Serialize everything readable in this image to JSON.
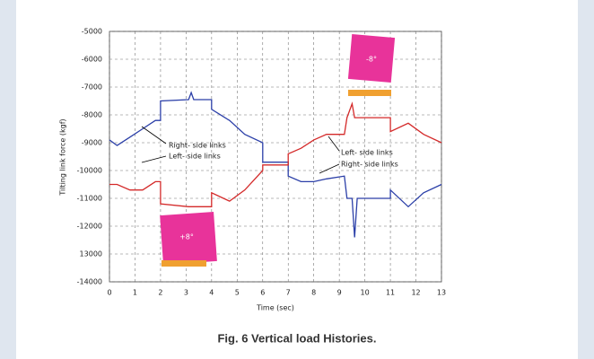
{
  "chart_data": {
    "type": "line",
    "ylabel": "Tilting link force (kgf)",
    "xlabel": "Time (sec)",
    "x": [
      0,
      0.3,
      0.8,
      1.3,
      1.8,
      2,
      2,
      3.1,
      3.2,
      3.3,
      4,
      4,
      4.7,
      5.3,
      6,
      6,
      7,
      7,
      7.5,
      8,
      8.5,
      9.2,
      9.3,
      9.5,
      9.6,
      9.7,
      10,
      11,
      11,
      11.7,
      12.3,
      13
    ],
    "series": [
      {
        "color": "#2b3fa8",
        "values": [
          -8900,
          -9100,
          -8800,
          -8500,
          -8200,
          -8200,
          -7500,
          -7450,
          -7200,
          -7450,
          -7450,
          -7800,
          -8200,
          -8700,
          -9000,
          -9700,
          -9700,
          -10200,
          -10400,
          -10400,
          -10300,
          -10200,
          -11000,
          -11000,
          -12400,
          -11000,
          -11000,
          -11000,
          -10700,
          -11300,
          -10800,
          -10500
        ]
      },
      {
        "color": "#d42a2a",
        "values": [
          -10500,
          -10500,
          -10700,
          -10700,
          -10400,
          -10400,
          -11200,
          -11300,
          -11300,
          -11300,
          -11300,
          -10800,
          -11100,
          -10700,
          -10000,
          -9800,
          -9800,
          -9400,
          -9200,
          -8900,
          -8700,
          -8700,
          -8100,
          -7600,
          -8100,
          -8100,
          -8100,
          -8100,
          -8600,
          -8300,
          -8700,
          -9000
        ]
      }
    ],
    "xlim": [
      0,
      13
    ],
    "xticks": [
      0,
      1,
      2,
      3,
      4,
      5,
      6,
      7,
      8,
      9,
      10,
      11,
      12,
      13
    ],
    "ylim": [
      -14000,
      -5000
    ],
    "yticks": [
      -14000,
      {
        "value": -13000,
        "label": "13000"
      },
      -12000,
      -11000,
      -10000,
      -9000,
      -8000,
      -7000,
      -6000,
      -5000
    ],
    "grid": true,
    "annotations": [
      "Right- side links",
      "Left- side links",
      "Left- side links",
      "Right- side links",
      "+8°",
      "-8°"
    ]
  },
  "caption": "Fig. 6 Vertical load Histories."
}
